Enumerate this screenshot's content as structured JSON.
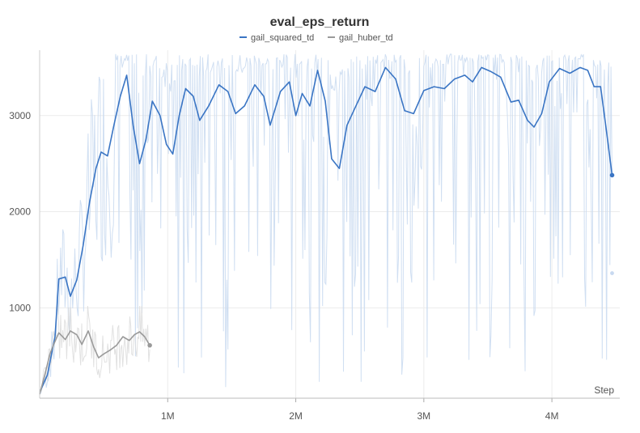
{
  "chart_data": {
    "type": "line",
    "title": "eval_eps_return",
    "xlabel": "Step",
    "ylabel": "",
    "xlim": [
      0,
      4530000
    ],
    "ylim": [
      60,
      3680
    ],
    "x_ticks": [
      {
        "value": 1000000,
        "label": "1M"
      },
      {
        "value": 2000000,
        "label": "2M"
      },
      {
        "value": 3000000,
        "label": "3M"
      },
      {
        "value": 4000000,
        "label": "4M"
      }
    ],
    "y_ticks": [
      {
        "value": 1000,
        "label": "1000"
      },
      {
        "value": 2000,
        "label": "2000"
      },
      {
        "value": 3000,
        "label": "3000"
      }
    ],
    "grid": true,
    "legend_position": "top-center",
    "series": [
      {
        "name": "gail_squared_td",
        "color": "#3a75c4",
        "raw_color": "#c8d9f0",
        "smoothed": [
          [
            0,
            120
          ],
          [
            60000,
            300
          ],
          [
            120000,
            700
          ],
          [
            150000,
            1300
          ],
          [
            200000,
            1320
          ],
          [
            240000,
            1120
          ],
          [
            290000,
            1290
          ],
          [
            340000,
            1650
          ],
          [
            390000,
            2100
          ],
          [
            440000,
            2450
          ],
          [
            480000,
            2620
          ],
          [
            530000,
            2580
          ],
          [
            580000,
            2900
          ],
          [
            630000,
            3200
          ],
          [
            680000,
            3420
          ],
          [
            730000,
            2900
          ],
          [
            780000,
            2500
          ],
          [
            830000,
            2750
          ],
          [
            880000,
            3150
          ],
          [
            940000,
            3000
          ],
          [
            990000,
            2700
          ],
          [
            1040000,
            2600
          ],
          [
            1090000,
            3000
          ],
          [
            1140000,
            3280
          ],
          [
            1200000,
            3200
          ],
          [
            1250000,
            2950
          ],
          [
            1320000,
            3100
          ],
          [
            1400000,
            3320
          ],
          [
            1470000,
            3250
          ],
          [
            1530000,
            3020
          ],
          [
            1600000,
            3100
          ],
          [
            1680000,
            3320
          ],
          [
            1750000,
            3200
          ],
          [
            1800000,
            2900
          ],
          [
            1880000,
            3250
          ],
          [
            1950000,
            3350
          ],
          [
            2000000,
            3000
          ],
          [
            2050000,
            3230
          ],
          [
            2110000,
            3100
          ],
          [
            2170000,
            3470
          ],
          [
            2230000,
            3150
          ],
          [
            2280000,
            2550
          ],
          [
            2340000,
            2450
          ],
          [
            2400000,
            2900
          ],
          [
            2470000,
            3100
          ],
          [
            2540000,
            3300
          ],
          [
            2620000,
            3250
          ],
          [
            2700000,
            3500
          ],
          [
            2780000,
            3380
          ],
          [
            2850000,
            3050
          ],
          [
            2920000,
            3020
          ],
          [
            3000000,
            3260
          ],
          [
            3080000,
            3300
          ],
          [
            3160000,
            3280
          ],
          [
            3240000,
            3380
          ],
          [
            3320000,
            3420
          ],
          [
            3380000,
            3350
          ],
          [
            3450000,
            3500
          ],
          [
            3520000,
            3460
          ],
          [
            3600000,
            3400
          ],
          [
            3680000,
            3140
          ],
          [
            3740000,
            3160
          ],
          [
            3810000,
            2950
          ],
          [
            3860000,
            2880
          ],
          [
            3920000,
            3020
          ],
          [
            3980000,
            3350
          ],
          [
            4060000,
            3490
          ],
          [
            4140000,
            3440
          ],
          [
            4220000,
            3500
          ],
          [
            4280000,
            3470
          ],
          [
            4330000,
            3300
          ],
          [
            4380000,
            3300
          ],
          [
            4420000,
            2900
          ],
          [
            4470000,
            2380
          ]
        ],
        "last_raw": [
          4470000,
          1360
        ]
      },
      {
        "name": "gail_huber_td",
        "color": "#9a9a9a",
        "raw_color": "#dcdcdc",
        "smoothed": [
          [
            0,
            100
          ],
          [
            40000,
            300
          ],
          [
            80000,
            520
          ],
          [
            110000,
            620
          ],
          [
            150000,
            740
          ],
          [
            200000,
            670
          ],
          [
            240000,
            760
          ],
          [
            290000,
            720
          ],
          [
            330000,
            620
          ],
          [
            380000,
            760
          ],
          [
            420000,
            600
          ],
          [
            460000,
            480
          ],
          [
            500000,
            520
          ],
          [
            550000,
            560
          ],
          [
            600000,
            610
          ],
          [
            650000,
            700
          ],
          [
            700000,
            660
          ],
          [
            740000,
            720
          ],
          [
            780000,
            750
          ],
          [
            820000,
            700
          ],
          [
            860000,
            610
          ]
        ]
      }
    ]
  }
}
